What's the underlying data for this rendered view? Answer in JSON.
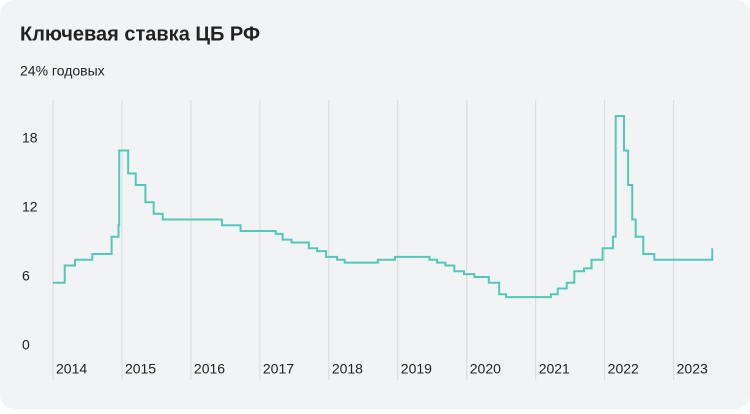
{
  "chart_data": {
    "type": "step-line",
    "title": "Ключевая ставка ЦБ РФ",
    "subtitle": "24% годовых",
    "color": "#52c9b8",
    "x": [
      2014.0,
      2014.17,
      2014.32,
      2014.57,
      2014.85,
      2014.95,
      2014.96,
      2015.09,
      2015.2,
      2015.34,
      2015.46,
      2015.59,
      2016.45,
      2016.72,
      2017.23,
      2017.33,
      2017.46,
      2017.71,
      2017.83,
      2017.96,
      2018.12,
      2018.23,
      2018.71,
      2018.96,
      2019.46,
      2019.57,
      2019.69,
      2019.82,
      2019.96,
      2020.11,
      2020.32,
      2020.47,
      2020.57,
      2021.22,
      2021.32,
      2021.45,
      2021.56,
      2021.7,
      2021.81,
      2021.97,
      2022.12,
      2022.16,
      2022.28,
      2022.34,
      2022.4,
      2022.45,
      2022.56,
      2022.72,
      2023.56
    ],
    "values": [
      5.5,
      7,
      7.5,
      8,
      9.5,
      10.5,
      17,
      15,
      14,
      12.5,
      11.5,
      11,
      10.5,
      10,
      9.75,
      9.25,
      9,
      8.5,
      8.25,
      7.75,
      7.5,
      7.25,
      7.5,
      7.75,
      7.5,
      7.25,
      7,
      6.5,
      6.25,
      6,
      5.5,
      4.5,
      4.25,
      4.5,
      5,
      5.5,
      6.5,
      6.75,
      7.5,
      8.5,
      9.5,
      20,
      17,
      14,
      11,
      9.5,
      8,
      7.5,
      8.5
    ],
    "xlim": [
      2014,
      2023.6
    ],
    "xticks": [
      2014,
      2015,
      2016,
      2017,
      2018,
      2019,
      2020,
      2021,
      2022,
      2023
    ],
    "ylim": [
      0,
      21
    ],
    "yticks": [
      0,
      6,
      12,
      18
    ],
    "grid": true
  }
}
